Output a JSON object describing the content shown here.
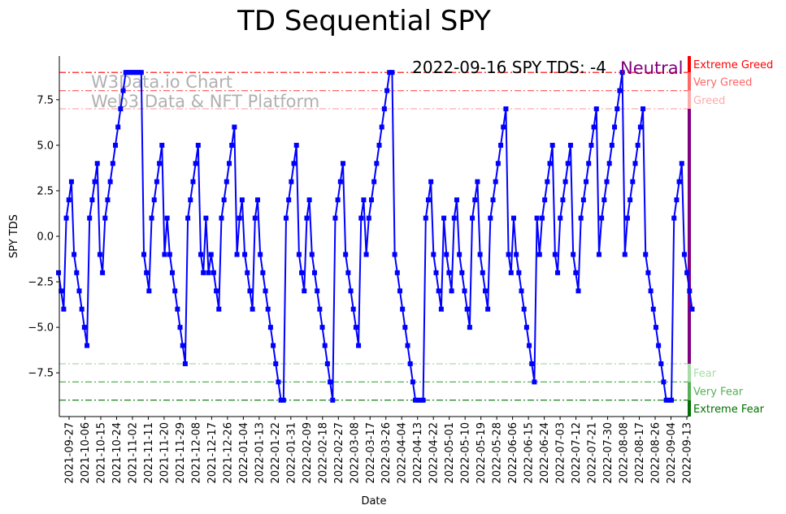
{
  "chart_data": {
    "type": "line",
    "title": "TD Sequential SPY",
    "xlabel": "Date",
    "ylabel": "SPY TDS",
    "ylim": [
      -9.9,
      9.9
    ],
    "y_ticks": [
      -7.5,
      -5.0,
      -2.5,
      0.0,
      2.5,
      5.0,
      7.5
    ],
    "y_tick_labels": [
      "−7.5",
      "−5.0",
      "−2.5",
      "0.0",
      "2.5",
      "5.0",
      "7.5"
    ],
    "x_start": "2021-09-21",
    "x_end": "2022-09-16",
    "x_tick_labels": [
      "2021-09-27",
      "2021-10-06",
      "2021-10-15",
      "2021-10-24",
      "2021-11-02",
      "2021-11-11",
      "2021-11-20",
      "2021-11-29",
      "2021-12-08",
      "2021-12-17",
      "2021-12-26",
      "2022-01-04",
      "2022-01-13",
      "2022-01-22",
      "2022-01-31",
      "2022-02-09",
      "2022-02-18",
      "2022-02-27",
      "2022-03-08",
      "2022-03-17",
      "2022-03-26",
      "2022-04-04",
      "2022-04-13",
      "2022-04-22",
      "2022-05-01",
      "2022-05-10",
      "2022-05-19",
      "2022-05-28",
      "2022-06-06",
      "2022-06-15",
      "2022-06-24",
      "2022-07-03",
      "2022-07-12",
      "2022-07-21",
      "2022-07-30",
      "2022-08-08",
      "2022-08-17",
      "2022-08-26",
      "2022-09-04",
      "2022-09-13"
    ],
    "series": [
      {
        "name": "SPY TDS",
        "color": "#0000ff",
        "values": [
          -2,
          -3,
          -4,
          1,
          2,
          3,
          -1,
          -2,
          -3,
          -4,
          -5,
          -6,
          1,
          2,
          3,
          4,
          -1,
          -2,
          1,
          2,
          3,
          4,
          5,
          6,
          7,
          8,
          9,
          9,
          9,
          9,
          9,
          9,
          9,
          -1,
          -2,
          -3,
          1,
          2,
          3,
          4,
          5,
          -1,
          1,
          -1,
          -2,
          -3,
          -4,
          -5,
          -6,
          -7,
          1,
          2,
          3,
          4,
          5,
          -1,
          -2,
          1,
          -2,
          -1,
          -2,
          -3,
          -4,
          1,
          2,
          3,
          4,
          5,
          6,
          -1,
          1,
          2,
          -1,
          -2,
          -3,
          -4,
          1,
          2,
          -1,
          -2,
          -3,
          -4,
          -5,
          -6,
          -7,
          -8,
          -9,
          -9,
          1,
          2,
          3,
          4,
          5,
          -1,
          -2,
          -3,
          1,
          2,
          -1,
          -2,
          -3,
          -4,
          -5,
          -6,
          -7,
          -8,
          -9,
          1,
          2,
          3,
          4,
          -1,
          -2,
          -3,
          -4,
          -5,
          -6,
          1,
          2,
          -1,
          1,
          2,
          3,
          4,
          5,
          6,
          7,
          8,
          9,
          9,
          -1,
          -2,
          -3,
          -4,
          -5,
          -6,
          -7,
          -8,
          -9,
          -9,
          -9,
          -9,
          1,
          2,
          3,
          -1,
          -2,
          -3,
          -4,
          1,
          -1,
          -2,
          -3,
          1,
          2,
          -1,
          -2,
          -3,
          -4,
          -5,
          1,
          2,
          3,
          -1,
          -2,
          -3,
          -4,
          1,
          2,
          3,
          4,
          5,
          6,
          7,
          -1,
          -2,
          1,
          -1,
          -2,
          -3,
          -4,
          -5,
          -6,
          -7,
          -8,
          1,
          -1,
          1,
          2,
          3,
          4,
          5,
          -1,
          -2,
          1,
          2,
          3,
          4,
          5,
          -1,
          -2,
          -3,
          1,
          2,
          3,
          4,
          5,
          6,
          7,
          -1,
          1,
          2,
          3,
          4,
          5,
          6,
          7,
          8,
          9,
          -1,
          1,
          2,
          3,
          4,
          5,
          6,
          7,
          -1,
          -2,
          -3,
          -4,
          -5,
          -6,
          -7,
          -8,
          -9,
          -9,
          -9,
          1,
          2,
          3,
          4,
          -1,
          -2,
          -3,
          -4
        ]
      }
    ],
    "levels": [
      {
        "value": 9,
        "label": "Extreme Greed",
        "color": "#ff0000"
      },
      {
        "value": 8,
        "label": "Very Greed",
        "color": "#ff6666"
      },
      {
        "value": 7,
        "label": "Greed",
        "color": "#ffaaaa"
      },
      {
        "value": -7,
        "label": "Fear",
        "color": "#a8dca8"
      },
      {
        "value": -8,
        "label": "Very Fear",
        "color": "#55b055"
      },
      {
        "value": -9,
        "label": "Extreme Fear",
        "color": "#007000"
      }
    ],
    "neutral_color": "#800080",
    "annotation": "2022-09-16 SPY TDS: -4",
    "status": "Neutral",
    "watermark": [
      "W3Data.io Chart",
      "Web3 Data & NFT Platform"
    ],
    "grid": false,
    "legend": "none"
  }
}
